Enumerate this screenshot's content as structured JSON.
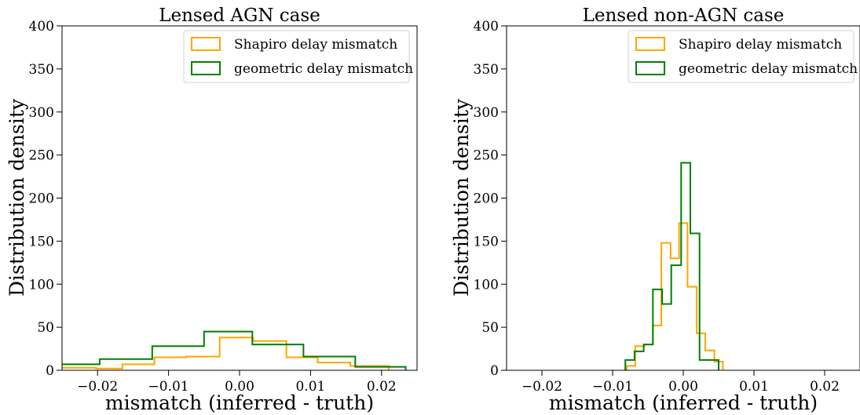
{
  "colors": {
    "shapiro": "#FFA500",
    "geometric": "#008000"
  },
  "chart_data": [
    {
      "type": "histogram",
      "title": "Lensed AGN case",
      "xlabel": "mismatch (inferred - truth)",
      "ylabel": "Distribution density",
      "xlim": [
        -0.025,
        0.025
      ],
      "ylim": [
        0,
        400
      ],
      "xticks": [
        -0.02,
        -0.01,
        0.0,
        0.01,
        0.02
      ],
      "xtick_labels": [
        "−0.02",
        "−0.01",
        "0.00",
        "0.01",
        "0.02"
      ],
      "yticks": [
        0,
        50,
        100,
        150,
        200,
        250,
        300,
        350,
        400
      ],
      "ytick_labels": [
        "0",
        "50",
        "100",
        "150",
        "200",
        "250",
        "300",
        "350",
        "400"
      ],
      "legend_position": "top-right",
      "series": [
        {
          "name": "Shapiro delay mismatch",
          "color_key": "shapiro",
          "edges": [
            -0.027,
            -0.0202,
            -0.0165,
            -0.012,
            -0.0075,
            -0.0028,
            0.0019,
            0.0066,
            0.011,
            0.0156,
            0.021
          ],
          "values": [
            3,
            2,
            7,
            15,
            16,
            38,
            34,
            15,
            9,
            5
          ]
        },
        {
          "name": "geometric delay mismatch",
          "color_key": "geometric",
          "edges": [
            -0.027,
            -0.0197,
            -0.0123,
            -0.005,
            0.0018,
            0.009,
            0.0163,
            0.0234
          ],
          "values": [
            7,
            13,
            28,
            45,
            30,
            16,
            4
          ]
        }
      ]
    },
    {
      "type": "histogram",
      "title": "Lensed non-AGN case",
      "xlabel": "mismatch (inferred - truth)",
      "ylabel": "Distribution density",
      "xlim": [
        -0.025,
        0.025
      ],
      "ylim": [
        0,
        400
      ],
      "xticks": [
        -0.02,
        -0.01,
        0.0,
        0.01,
        0.02
      ],
      "xtick_labels": [
        "−0.02",
        "−0.01",
        "0.00",
        "0.01",
        "0.02"
      ],
      "yticks": [
        0,
        50,
        100,
        150,
        200,
        250,
        300,
        350,
        400
      ],
      "ytick_labels": [
        "0",
        "50",
        "100",
        "150",
        "200",
        "250",
        "300",
        "350",
        "400"
      ],
      "legend_position": "top-right",
      "series": [
        {
          "name": "Shapiro delay mismatch",
          "color_key": "shapiro",
          "edges": [
            -0.008,
            -0.0068,
            -0.0055,
            -0.0043,
            -0.0031,
            -0.0018,
            -0.0006,
            0.0006,
            0.0019,
            0.0031,
            0.0044,
            0.0056
          ],
          "values": [
            5,
            28,
            30,
            52,
            148,
            130,
            171,
            97,
            43,
            23,
            10
          ]
        },
        {
          "name": "geometric delay mismatch",
          "color_key": "geometric",
          "edges": [
            -0.0082,
            -0.0069,
            -0.0056,
            -0.0043,
            -0.003,
            -0.0017,
            -0.0003,
            0.001,
            0.0023,
            0.0036,
            0.005
          ],
          "values": [
            12,
            22,
            30,
            94,
            77,
            122,
            241,
            159,
            12,
            12
          ]
        }
      ]
    }
  ]
}
